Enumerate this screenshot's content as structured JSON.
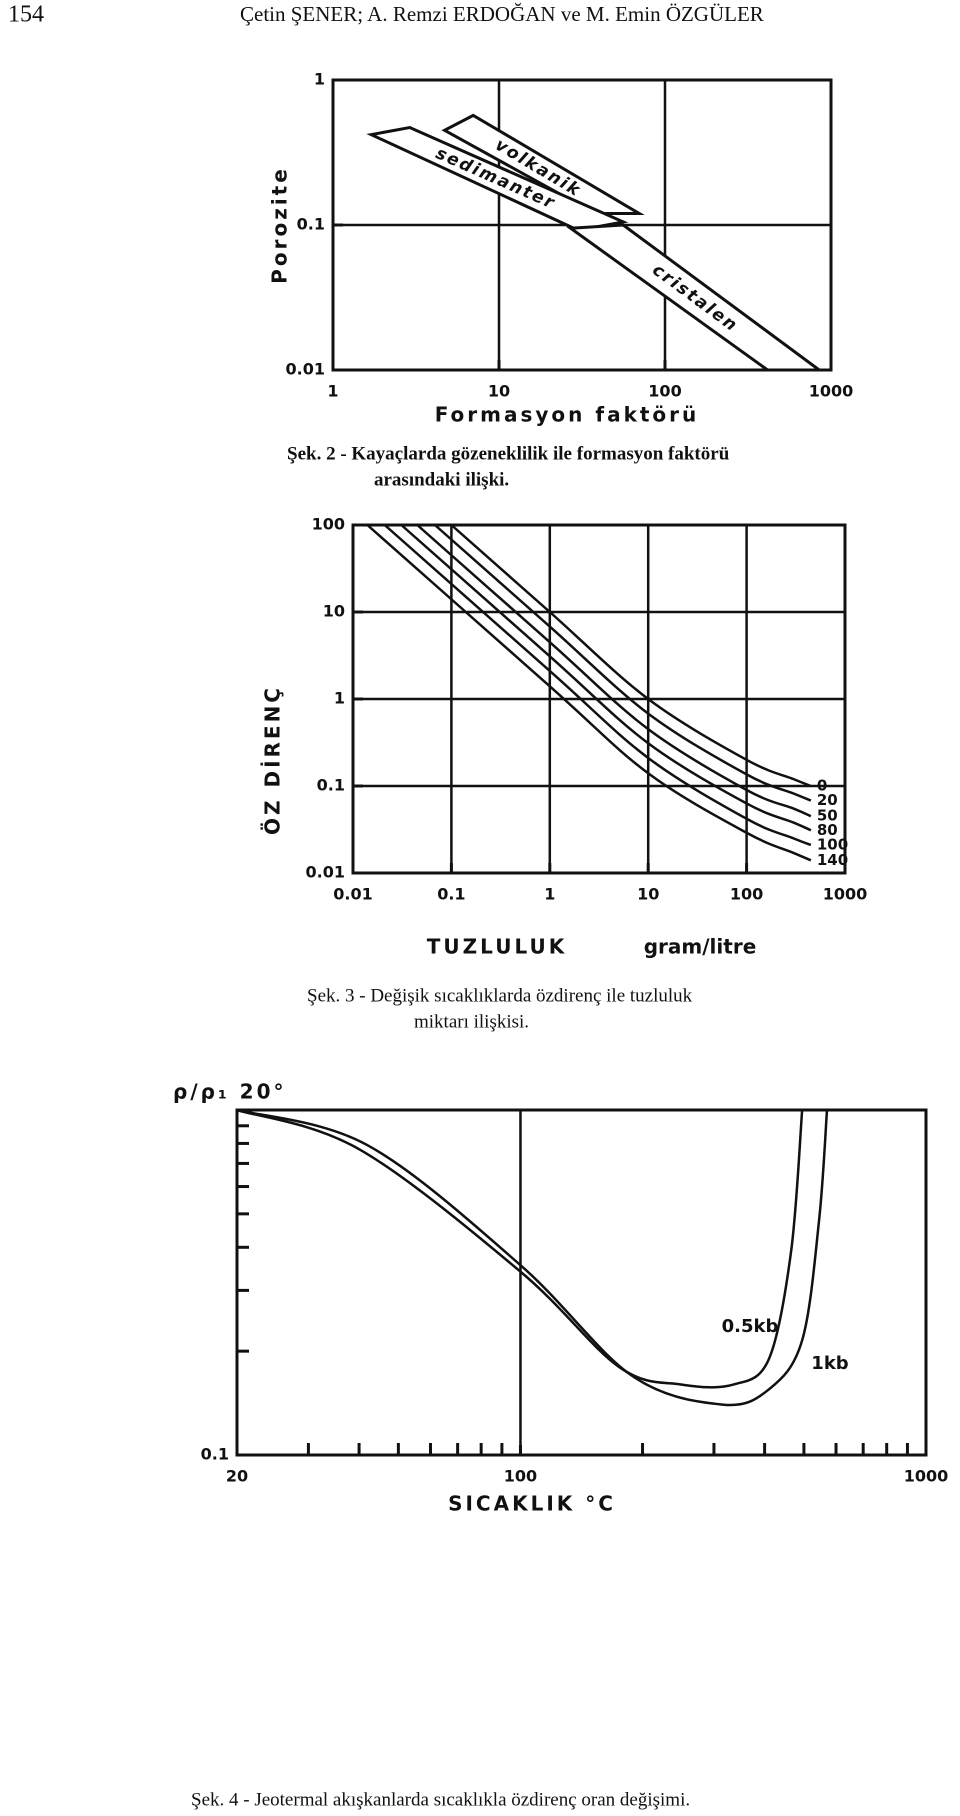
{
  "header": {
    "page_number": "154",
    "authors": "Çetin ŞENER; A. Remzi ERDOĞAN ve M. Emin ÖZGÜLER"
  },
  "chart_data": [
    {
      "type": "area",
      "xlabel": "Formasyon faktörü",
      "ylabel": "Porozite",
      "xlog": true,
      "ylog": true,
      "xlim": [
        1,
        1000
      ],
      "ylim": [
        0.01,
        1
      ],
      "xticks": [
        1,
        10,
        100,
        1000
      ],
      "yticks": [
        0.01,
        0.1,
        1
      ],
      "grid": true,
      "series": [
        {
          "name": "volkanik",
          "color": "#111",
          "x": [
            7,
            70,
            38,
            4.7
          ],
          "y": [
            0.57,
            0.12,
            0.12,
            0.45
          ]
        },
        {
          "name": "sedimanter",
          "color": "#111",
          "x": [
            2.9,
            56,
            30,
            1.7
          ],
          "y": [
            0.47,
            0.105,
            0.092,
            0.42
          ]
        },
        {
          "name": "cristalen",
          "color": "#111",
          "x": [
            56,
            850,
            415,
            27
          ],
          "y": [
            0.1,
            0.01,
            0.01,
            0.095
          ]
        }
      ],
      "caption": [
        "Şek.  2 - Kayaçlarda gözeneklilik ile formasyon faktörü",
        "arasındaki ilişki."
      ]
    },
    {
      "type": "line",
      "xlabel": "TUZLULUK",
      "xlabel_unit": "gram/litre",
      "ylabel": "ÖZ DİRENÇ",
      "xlog": true,
      "ylog": true,
      "xlim": [
        0.01,
        1000
      ],
      "ylim": [
        0.01,
        100
      ],
      "xticks": [
        0.01,
        0.1,
        1,
        10,
        100,
        1000
      ],
      "yticks": [
        0.01,
        0.1,
        1,
        10,
        100
      ],
      "grid": true,
      "series": [
        {
          "name": "0",
          "color": "#111",
          "x": [
            0.1,
            1,
            10,
            100,
            300,
            450
          ],
          "y": [
            100,
            10,
            1,
            0.2,
            0.12,
            0.1
          ]
        },
        {
          "name": "20",
          "color": "#111",
          "x": [
            0.068,
            1,
            10,
            100,
            300,
            450
          ],
          "y": [
            100,
            6.8,
            0.68,
            0.136,
            0.082,
            0.068
          ]
        },
        {
          "name": "50",
          "color": "#111",
          "x": [
            0.045,
            1,
            10,
            100,
            300,
            450
          ],
          "y": [
            100,
            4.5,
            0.45,
            0.09,
            0.055,
            0.045
          ]
        },
        {
          "name": "80",
          "color": "#111",
          "x": [
            0.031,
            1,
            10,
            100,
            300,
            450
          ],
          "y": [
            100,
            3.1,
            0.31,
            0.063,
            0.038,
            0.031
          ]
        },
        {
          "name": "100",
          "color": "#111",
          "x": [
            0.021,
            1,
            10,
            100,
            300,
            450
          ],
          "y": [
            100,
            2.1,
            0.21,
            0.042,
            0.025,
            0.021
          ]
        },
        {
          "name": "140",
          "color": "#111",
          "x": [
            0.014,
            1,
            10,
            100,
            300,
            450
          ],
          "y": [
            100,
            1.4,
            0.14,
            0.029,
            0.017,
            0.014
          ]
        }
      ],
      "caption": [
        "Şek.   3 - Değişik sıcaklıklarda özdirenç ile tuzluluk",
        "miktarı ilişkisi."
      ]
    },
    {
      "type": "line",
      "xlabel": "SICAKLIK °C",
      "ylabel": "ρ/ρ₁ 20°",
      "xlog": true,
      "ylog": true,
      "xlim": [
        20,
        1000
      ],
      "ylim": [
        0.1,
        1
      ],
      "xticks": [
        20,
        100,
        1000
      ],
      "yticks": [
        0.1
      ],
      "grid": true,
      "xminorticks": [
        30,
        40,
        50,
        60,
        70,
        80,
        90,
        200,
        300,
        400,
        500,
        600,
        700,
        800,
        900
      ],
      "yminorticks": [
        0.2,
        0.3,
        0.4,
        0.5,
        0.6,
        0.7,
        0.8,
        0.9
      ],
      "series": [
        {
          "name": "0.5kb",
          "color": "#111",
          "x": [
            20,
            40,
            100,
            175,
            250,
            335,
            410,
            465,
            495
          ],
          "y": [
            1,
            0.77,
            0.34,
            0.18,
            0.16,
            0.16,
            0.19,
            0.39,
            1
          ]
        },
        {
          "name": "1kb",
          "color": "#111",
          "x": [
            20,
            42,
            100,
            188,
            315,
            410,
            495,
            545,
            570
          ],
          "y": [
            1,
            0.79,
            0.355,
            0.17,
            0.14,
            0.155,
            0.215,
            0.48,
            1
          ]
        }
      ],
      "caption": [
        "Şek.   4 - Jeotermal akışkanlarda sıcaklıkla özdirenç oran değişimi."
      ]
    }
  ]
}
